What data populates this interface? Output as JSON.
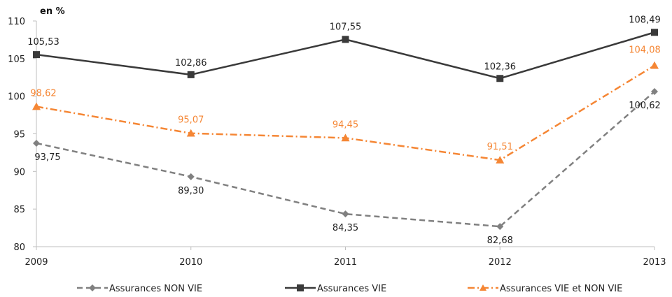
{
  "chart_data": {
    "type": "line",
    "ylabel": "en %",
    "x": [
      "2009",
      "2010",
      "2011",
      "2012",
      "2013"
    ],
    "ylim": [
      80,
      110
    ],
    "yticks": [
      80,
      85,
      90,
      95,
      100,
      105,
      110
    ],
    "grid": false,
    "legend_position": "bottom",
    "series": [
      {
        "name": "Assurances NON VIE",
        "values": [
          93.75,
          89.3,
          84.35,
          82.68,
          100.62
        ],
        "labels": [
          "93,75",
          "89,30",
          "84,35",
          "82,68",
          "100,62"
        ],
        "color": "#808080",
        "style": "dashed",
        "marker": "diamond"
      },
      {
        "name": "Assurances VIE",
        "values": [
          105.53,
          102.86,
          107.55,
          102.36,
          108.49
        ],
        "labels": [
          "105,53",
          "102,86",
          "107,55",
          "102,36",
          "108,49"
        ],
        "color": "#3a3a3a",
        "style": "solid",
        "marker": "square"
      },
      {
        "name": "Assurances VIE et NON VIE",
        "values": [
          98.62,
          95.07,
          94.45,
          91.51,
          104.08
        ],
        "labels": [
          "98,62",
          "95,07",
          "94,45",
          "91,51",
          "104,08"
        ],
        "color": "#f58634",
        "style": "dashdot",
        "marker": "triangle"
      }
    ]
  }
}
